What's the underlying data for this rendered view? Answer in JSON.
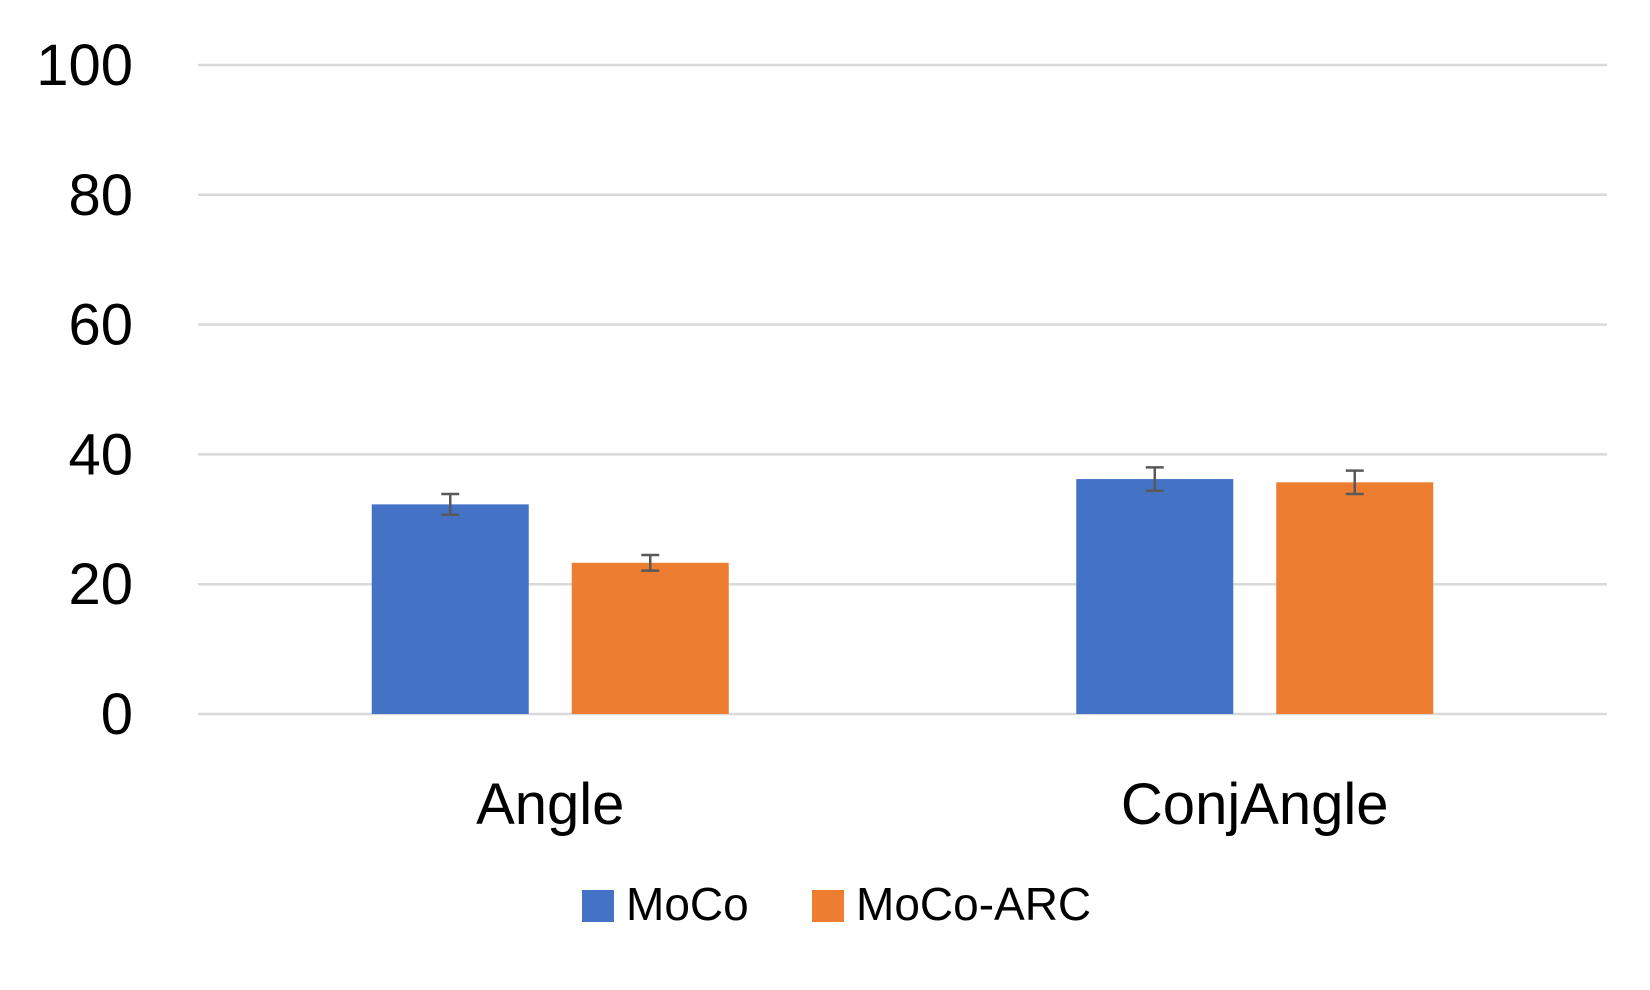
{
  "chart_data": {
    "type": "bar",
    "categories": [
      "Angle",
      "ConjAngle"
    ],
    "series": [
      {
        "name": "MoCo",
        "color": "#4472c4",
        "values": [
          32.3,
          36.2
        ],
        "errors": [
          1.6,
          1.8
        ]
      },
      {
        "name": "MoCo-ARC",
        "color": "#ed7d31",
        "values": [
          23.3,
          35.7
        ],
        "errors": [
          1.2,
          1.8
        ]
      }
    ],
    "title": "",
    "xlabel": "",
    "ylabel": "",
    "ylim": [
      0,
      100
    ],
    "yticks": [
      0,
      20,
      40,
      60,
      80,
      100
    ],
    "ytick_labels": [
      "0",
      "20",
      "40",
      "60",
      "80",
      "100"
    ],
    "grid": true,
    "legend_position": "bottom"
  }
}
